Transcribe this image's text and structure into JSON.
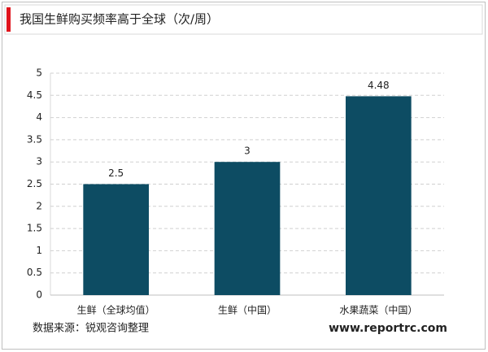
{
  "chart_data": {
    "type": "bar",
    "title": "我国生鲜购买频率高于全球（次/周）",
    "categories": [
      "生鲜（全球均值）",
      "生鲜（中国）",
      "水果蔬菜（中国）"
    ],
    "values": [
      2.5,
      3,
      4.48
    ],
    "color": "#0d4c63",
    "ylim": [
      0,
      5
    ],
    "yticks": [
      0,
      0.5,
      1,
      1.5,
      2,
      2.5,
      3,
      3.5,
      4,
      4.5,
      5
    ],
    "grid": true,
    "source": "数据来源：锐观咨询整理",
    "website": "www.reportrc.com"
  }
}
